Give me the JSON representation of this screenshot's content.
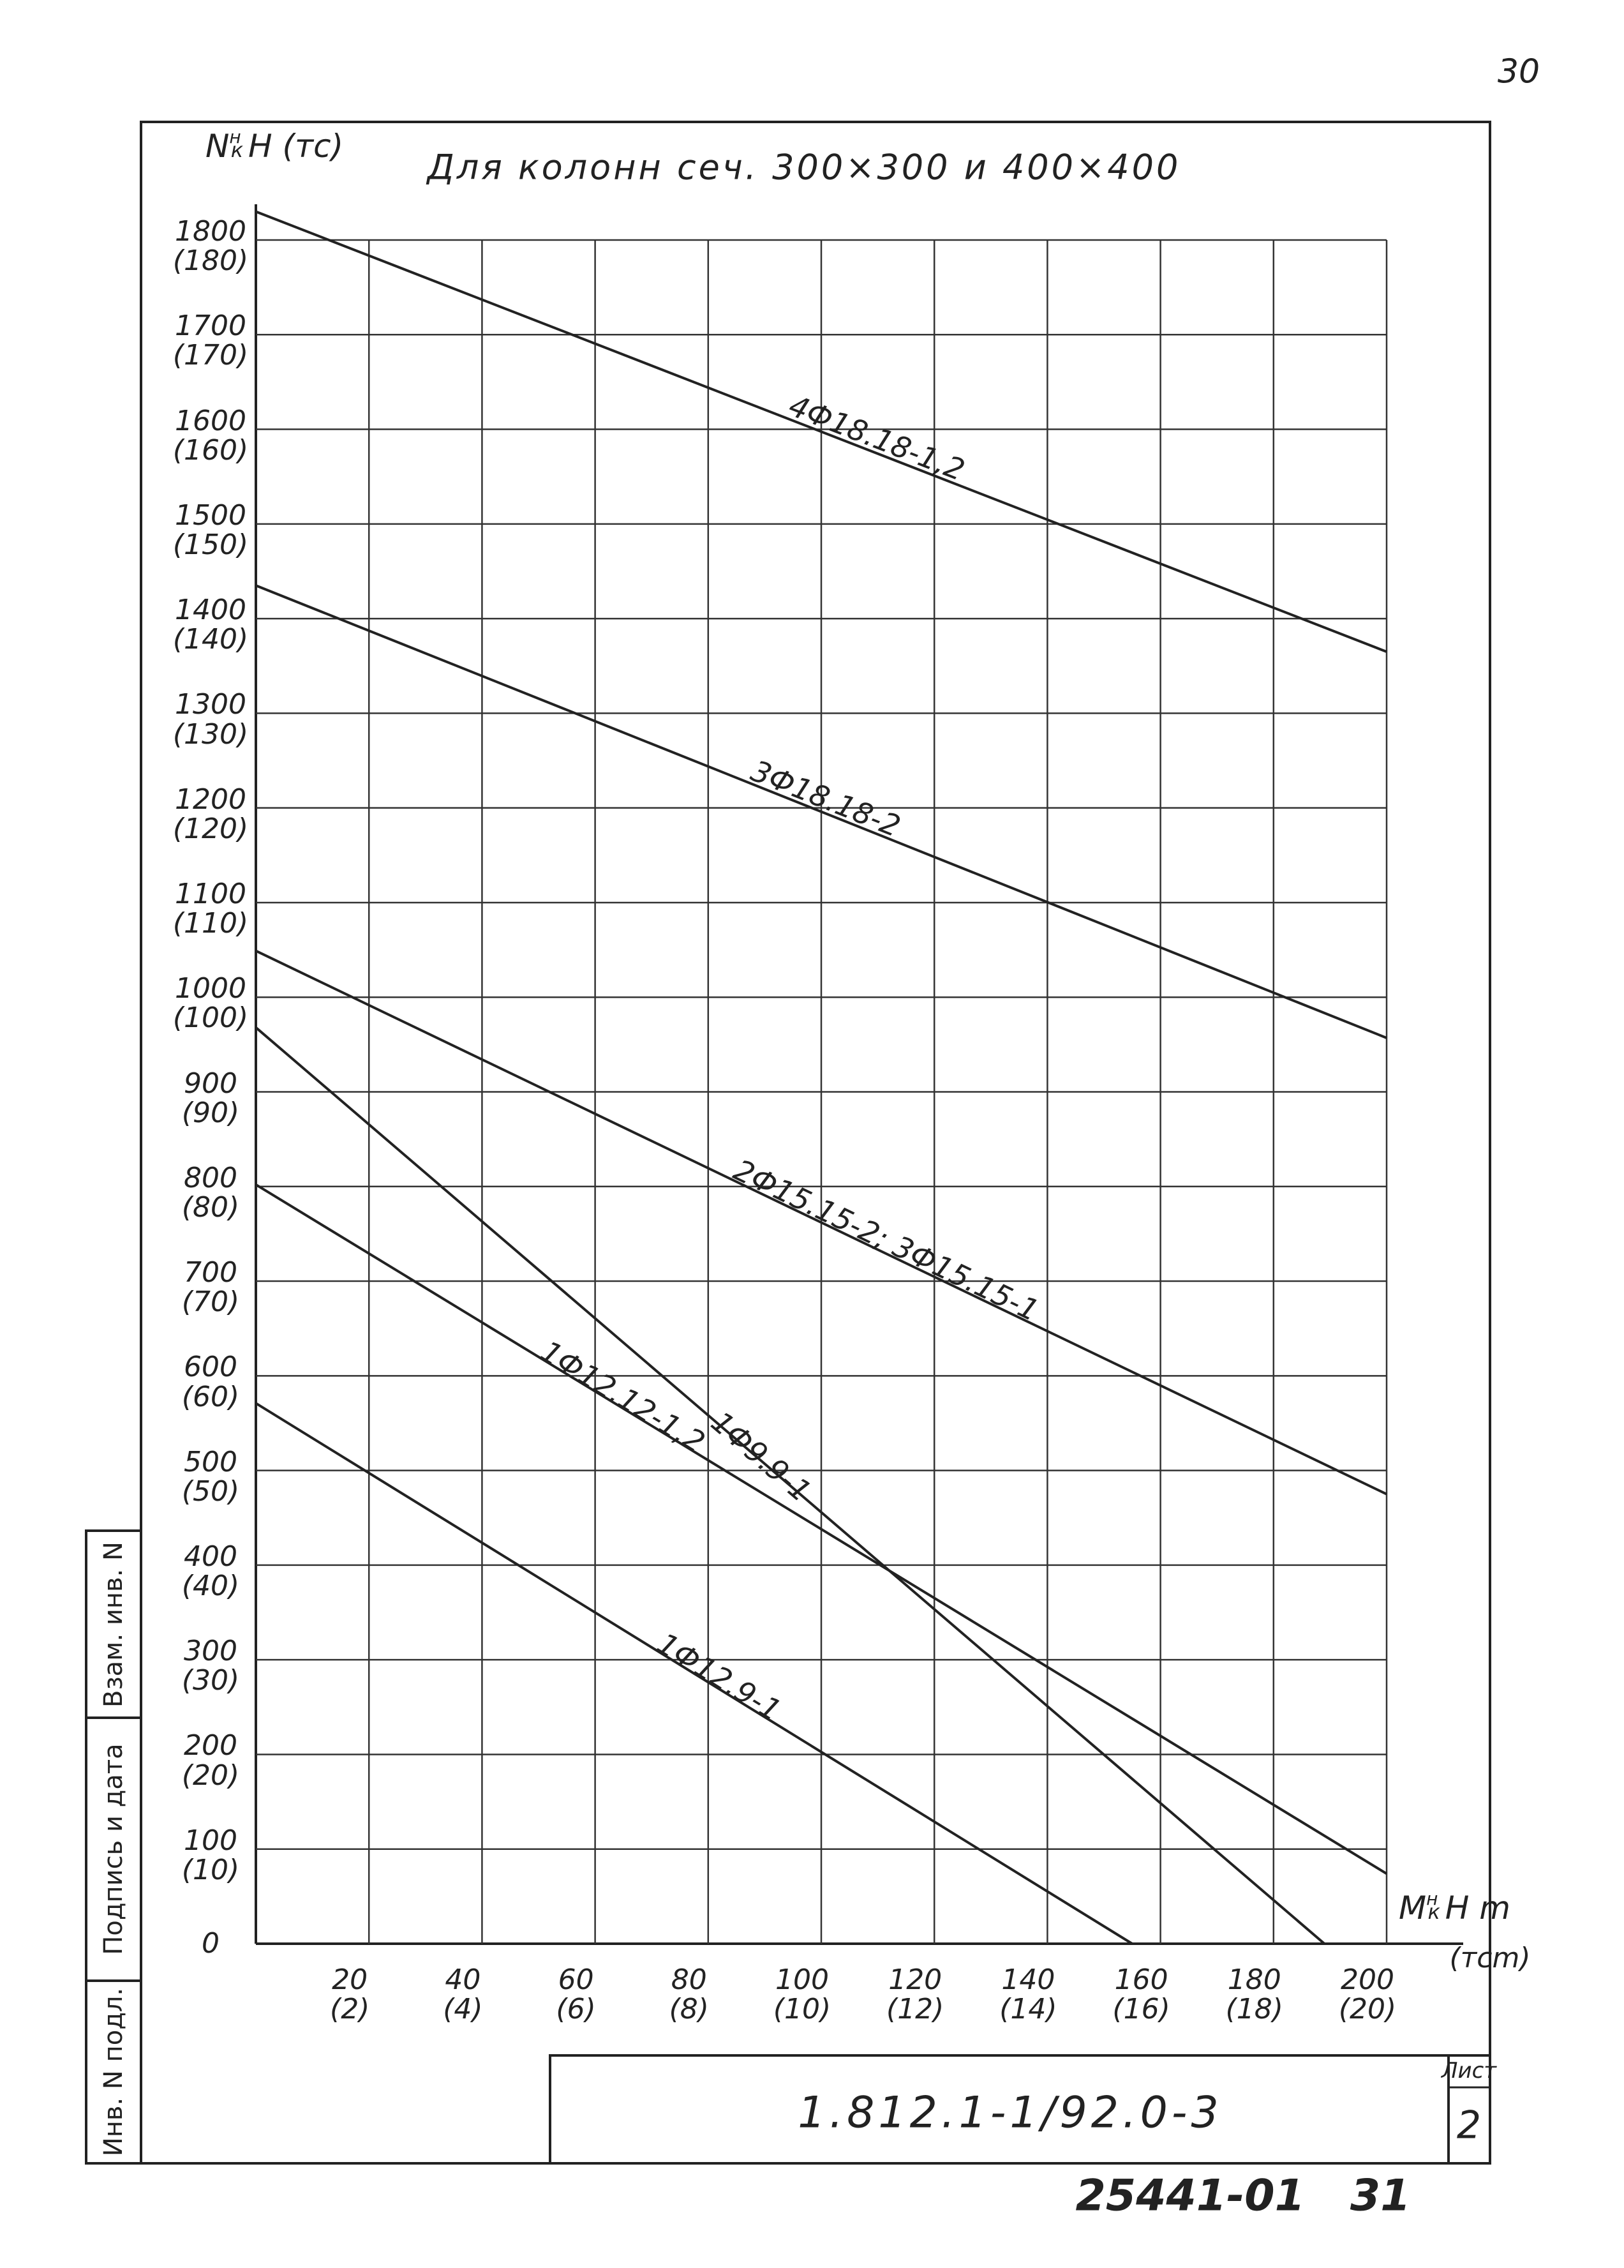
{
  "page_number": "30",
  "chart_data": {
    "type": "line",
    "title": "Для колонн сеч. 300×300 и 400×400",
    "y_label": {
      "symbol": "N",
      "sup": "н",
      "sub": "к",
      "unit": "H (тс)"
    },
    "x_label": {
      "symbol": "M",
      "sup": "н",
      "sub": "к",
      "unit": "H m",
      "alt_unit": "(тсm)"
    },
    "xlim": [
      0,
      200
    ],
    "xticks": [
      {
        "value": 20,
        "label": "20\n(2)"
      },
      {
        "value": 40,
        "label": "40\n(4)"
      },
      {
        "value": 60,
        "label": "60\n(6)"
      },
      {
        "value": 80,
        "label": "80\n(8)"
      },
      {
        "value": 100,
        "label": "100\n(10)"
      },
      {
        "value": 120,
        "label": "120\n(12)"
      },
      {
        "value": 140,
        "label": "140\n(14)"
      },
      {
        "value": 160,
        "label": "160\n(16)"
      },
      {
        "value": 180,
        "label": "180\n(18)"
      },
      {
        "value": 200,
        "label": "200\n(20)"
      }
    ],
    "ylim": [
      0,
      1800
    ],
    "yticks": [
      0,
      {
        "value": 100,
        "label": "100\n(10)"
      },
      {
        "value": 200,
        "label": "200\n(20)"
      },
      {
        "value": 300,
        "label": "300\n(30)"
      },
      {
        "value": 400,
        "label": "400\n(40)"
      },
      {
        "value": 500,
        "label": "500\n(50)"
      },
      {
        "value": 600,
        "label": "600\n(60)"
      },
      {
        "value": 700,
        "label": "700\n(70)"
      },
      {
        "value": 800,
        "label": "800\n(80)"
      },
      {
        "value": 900,
        "label": "900\n(90)"
      },
      {
        "value": 1000,
        "label": "1000\n(100)"
      },
      {
        "value": 1100,
        "label": "1100\n(110)"
      },
      {
        "value": 1200,
        "label": "1200\n(120)"
      },
      {
        "value": 1300,
        "label": "1300\n(130)"
      },
      {
        "value": 1400,
        "label": "1400\n(140)"
      },
      {
        "value": 1500,
        "label": "1500\n(150)"
      },
      {
        "value": 1600,
        "label": "1600\n(160)"
      },
      {
        "value": 1700,
        "label": "1700\n(170)"
      },
      {
        "value": 1800,
        "label": "1800\n(180)"
      }
    ],
    "grid": true,
    "series": [
      {
        "name": "4Ф18.18-1,2",
        "color": "#222222",
        "x": [
          0,
          200
        ],
        "values": [
          1830,
          1365
        ]
      },
      {
        "name": "3Ф18.18-2",
        "color": "#222222",
        "x": [
          0,
          200
        ],
        "values": [
          1435,
          957
        ]
      },
      {
        "name": "2Ф15.15-2; 3Ф15.15-1",
        "color": "#222222",
        "x": [
          0,
          200
        ],
        "values": [
          1049,
          475
        ]
      },
      {
        "name": "1Ф9.9-1",
        "color": "#222222",
        "x": [
          0,
          189
        ],
        "values": [
          968,
          0
        ]
      },
      {
        "name": "1Ф12.12-1,2",
        "color": "#222222",
        "x": [
          0,
          200
        ],
        "values": [
          802,
          74
        ]
      },
      {
        "name": "1Ф12.9-1",
        "color": "#222222",
        "x": [
          0,
          155
        ],
        "values": [
          571,
          0
        ]
      }
    ]
  },
  "stamp": {
    "code": "1.812.1-1/92.0-3",
    "sheet_label": "Лист",
    "sheet": "2",
    "archive": "25441-01   31",
    "side": [
      "Инв. N подл.",
      "Подпись и дата",
      "Взам. инв. N"
    ]
  }
}
